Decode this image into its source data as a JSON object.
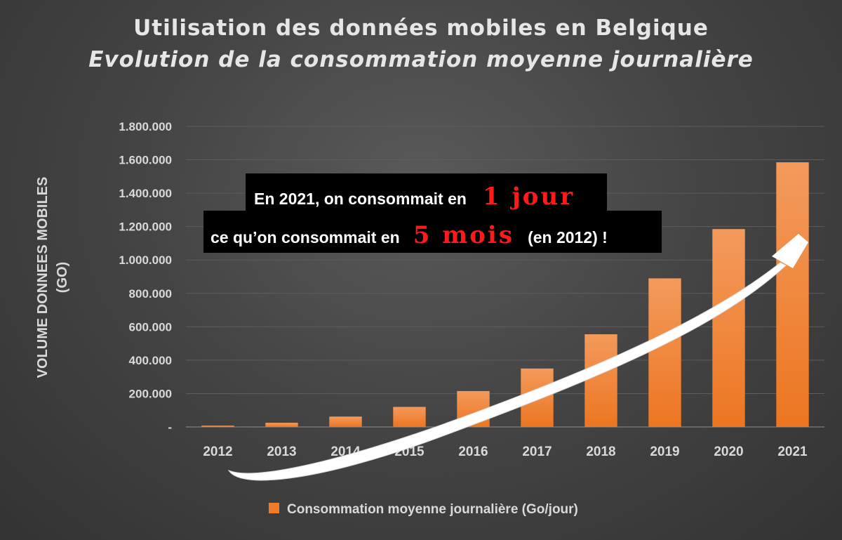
{
  "chart_data": {
    "type": "bar",
    "title": "Utilisation des données mobiles en Belgique",
    "subtitle": "Evolution de la consommation moyenne journalière",
    "ylabel_line1": "VOLUME DONNEES MOBILES",
    "ylabel_line2": "(GO)",
    "categories": [
      "2012",
      "2013",
      "2014",
      "2015",
      "2016",
      "2017",
      "2018",
      "2019",
      "2020",
      "2021"
    ],
    "series": [
      {
        "name": "Consommation moyenne journalière (Go/jour)",
        "color": "#f07c2a",
        "values": [
          8000,
          25000,
          62000,
          120000,
          215000,
          350000,
          555000,
          890000,
          1185000,
          1585000
        ]
      }
    ],
    "ylim": [
      0,
      1800000
    ],
    "yticks": [
      0,
      200000,
      400000,
      600000,
      800000,
      1000000,
      1200000,
      1400000,
      1600000,
      1800000
    ],
    "ytick_labels": [
      "-",
      "200.000",
      "400.000",
      "600.000",
      "800.000",
      "1.000.000",
      "1.200.000",
      "1.400.000",
      "1.600.000",
      "1.800.000"
    ],
    "grid": true,
    "legend_position": "bottom",
    "annotation": {
      "line1_text": "En 2021, on consommait en",
      "line1_highlight": "1 jour",
      "line2_text": "ce qu’on consommait en",
      "line2_highlight": "5 mois",
      "line2_suffix": "(en 2012) !"
    }
  }
}
